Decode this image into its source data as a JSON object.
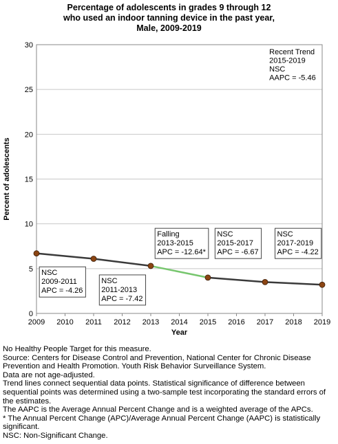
{
  "chart_data": {
    "type": "line",
    "title": [
      "Percentage of adolescents in grades 9 through 12",
      "who used an indoor tanning device in the past year,",
      "Male,  2009-2019"
    ],
    "xlabel": "Year",
    "ylabel": "Percent of adolescents",
    "xlim": [
      2009,
      2019
    ],
    "ylim": [
      0,
      30
    ],
    "x_ticks": [
      2009,
      2010,
      2011,
      2012,
      2013,
      2014,
      2015,
      2016,
      2017,
      2018,
      2019
    ],
    "y_ticks": [
      0,
      5,
      10,
      15,
      20,
      25,
      30
    ],
    "grid": true,
    "series": [
      {
        "x": [
          2009,
          2011,
          2013,
          2015,
          2017,
          2019
        ],
        "y": [
          6.7,
          6.1,
          5.3,
          4.0,
          3.5,
          3.2
        ]
      }
    ],
    "segments": [
      {
        "from": 2009,
        "to": 2011,
        "label": [
          "NSC",
          "2009-2011",
          "APC = -4.26"
        ],
        "significant": false
      },
      {
        "from": 2011,
        "to": 2013,
        "label": [
          "NSC",
          "2011-2013",
          "APC = -7.42"
        ],
        "significant": false
      },
      {
        "from": 2013,
        "to": 2015,
        "label": [
          "Falling",
          "2013-2015",
          "APC = -12.64*"
        ],
        "significant": true
      },
      {
        "from": 2015,
        "to": 2017,
        "label": [
          "NSC",
          "2015-2017",
          "APC = -6.67"
        ],
        "significant": false
      },
      {
        "from": 2017,
        "to": 2019,
        "label": [
          "NSC",
          "2017-2019",
          "APC = -4.22"
        ],
        "significant": false
      }
    ],
    "recent_trend": [
      "Recent Trend",
      "2015-2019",
      "NSC",
      "AAPC = -5.46"
    ],
    "colors": {
      "line": "#3a3a3a",
      "significant": "#77c66e",
      "marker": "#8b4513",
      "grid": "#c8c8c8"
    }
  },
  "footnotes": [
    "No Healthy People Target for this measure.",
    "Source: Centers for Disease Control and Prevention, National Center for Chronic Disease Prevention and Health Promotion. Youth Risk Behavior Surveillance System.",
    "Data are not age-adjusted.",
    "Trend lines connect sequential data points. Statistical significance of difference between sequential points was determined using a two-sample test incorporating the standard errors of the estimates.",
    "The AAPC is the Average Annual Percent Change and is a weighted average of the APCs.",
    "* The Annual Percent Change (APC)/Average Annual Percent Change (AAPC) is statistically significant.",
    "NSC: Non-Significant Change."
  ]
}
